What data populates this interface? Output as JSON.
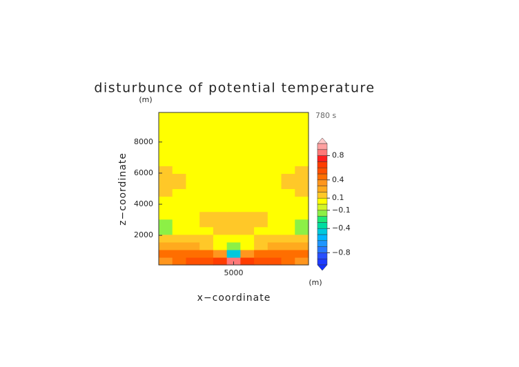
{
  "chart_data": {
    "type": "contour",
    "title": "disturbunce of potential temperature",
    "x_label": "x−coordinate",
    "y_label": "z−coordinate",
    "x_unit": "(m)",
    "y_unit": "(m)",
    "time_label": "780 s",
    "xlim": [
      0,
      10000
    ],
    "ylim": [
      100,
      9900
    ],
    "xticks": [
      5000
    ],
    "yticks": [
      2000,
      4000,
      6000,
      8000
    ],
    "field": [
      [
        0.35,
        0.45,
        0.5,
        0.55,
        0.65,
        0.85,
        0.65,
        0.55,
        0.5,
        0.45,
        0.35
      ],
      [
        0.45,
        0.45,
        0.45,
        0.4,
        0.3,
        -0.5,
        0.3,
        0.4,
        0.45,
        0.45,
        0.45
      ],
      [
        0.25,
        0.25,
        0.2,
        0.15,
        0.05,
        -0.15,
        0.05,
        0.15,
        0.2,
        0.25,
        0.25
      ],
      [
        0.12,
        0.12,
        0.15,
        0.12,
        0.08,
        0.05,
        0.08,
        0.12,
        0.15,
        0.12,
        0.12
      ],
      [
        -0.12,
        0.02,
        0.05,
        0.08,
        0.12,
        0.13,
        0.12,
        0.08,
        0.05,
        0.02,
        -0.12
      ],
      [
        -0.12,
        0.02,
        0.04,
        0.12,
        0.15,
        0.15,
        0.15,
        0.12,
        0.04,
        0.02,
        -0.12
      ],
      [
        0.0,
        0.02,
        0.03,
        0.11,
        0.13,
        0.14,
        0.13,
        0.11,
        0.03,
        0.02,
        0.0
      ],
      [
        0.03,
        0.02,
        0.02,
        0.03,
        0.05,
        0.05,
        0.05,
        0.03,
        0.02,
        0.02,
        0.03
      ],
      [
        0.06,
        0.03,
        0.02,
        0.02,
        0.02,
        0.02,
        0.02,
        0.02,
        0.02,
        0.03,
        0.06
      ],
      [
        0.12,
        0.05,
        0.02,
        0.02,
        0.02,
        0.02,
        0.02,
        0.02,
        0.02,
        0.05,
        0.12
      ],
      [
        0.13,
        0.11,
        0.03,
        0.02,
        0.02,
        0.02,
        0.02,
        0.02,
        0.03,
        0.11,
        0.13
      ],
      [
        0.13,
        0.11,
        0.03,
        0.02,
        0.02,
        0.02,
        0.02,
        0.02,
        0.03,
        0.11,
        0.13
      ],
      [
        0.12,
        0.05,
        0.02,
        0.02,
        0.02,
        0.02,
        0.02,
        0.02,
        0.02,
        0.05,
        0.12
      ],
      [
        0.04,
        0.03,
        0.02,
        0.02,
        0.02,
        0.02,
        0.02,
        0.02,
        0.02,
        0.03,
        0.04
      ],
      [
        0.02,
        0.02,
        0.02,
        0.02,
        0.02,
        0.02,
        0.02,
        0.02,
        0.02,
        0.02,
        0.02
      ],
      [
        0.02,
        0.02,
        0.02,
        0.02,
        0.02,
        0.02,
        0.02,
        0.02,
        0.02,
        0.02,
        0.02
      ],
      [
        0.02,
        0.02,
        0.02,
        0.02,
        0.02,
        0.02,
        0.02,
        0.02,
        0.02,
        0.02,
        0.02
      ],
      [
        0.02,
        0.02,
        0.02,
        0.02,
        0.02,
        0.02,
        0.02,
        0.02,
        0.02,
        0.02,
        0.02
      ],
      [
        0.02,
        0.02,
        0.02,
        0.02,
        0.02,
        0.02,
        0.02,
        0.02,
        0.02,
        0.02,
        0.02
      ],
      [
        0.02,
        0.02,
        0.02,
        0.02,
        0.02,
        0.02,
        0.02,
        0.02,
        0.02,
        0.02,
        0.02
      ]
    ],
    "colorbar": {
      "levels": [
        -1,
        -0.9,
        -0.8,
        -0.7,
        -0.6,
        -0.5,
        -0.4,
        -0.3,
        -0.2,
        -0.1,
        0,
        0.1,
        0.2,
        0.3,
        0.4,
        0.5,
        0.6,
        0.7,
        0.8,
        0.9,
        1
      ],
      "colors": [
        "#1432ff",
        "#1e3cff",
        "#2850ff",
        "#2878ff",
        "#1e96ff",
        "#00b4ff",
        "#00c8dc",
        "#00dca0",
        "#1ee878",
        "#8cf046",
        "#d2f528",
        "#ffff00",
        "#ffc828",
        "#ffaa1e",
        "#ff961e",
        "#ff6e00",
        "#ff5000",
        "#ff3c00",
        "#ff1e1e",
        "#ff7878",
        "#ffa0a0",
        "#ffc8c8"
      ],
      "ticks": [
        0.8,
        0.4,
        0.1,
        {
          "value": -0.1,
          "label": "−0.1"
        },
        {
          "value": -0.4,
          "label": "−0.4"
        },
        {
          "value": -0.8,
          "label": "−0.8"
        }
      ]
    }
  }
}
